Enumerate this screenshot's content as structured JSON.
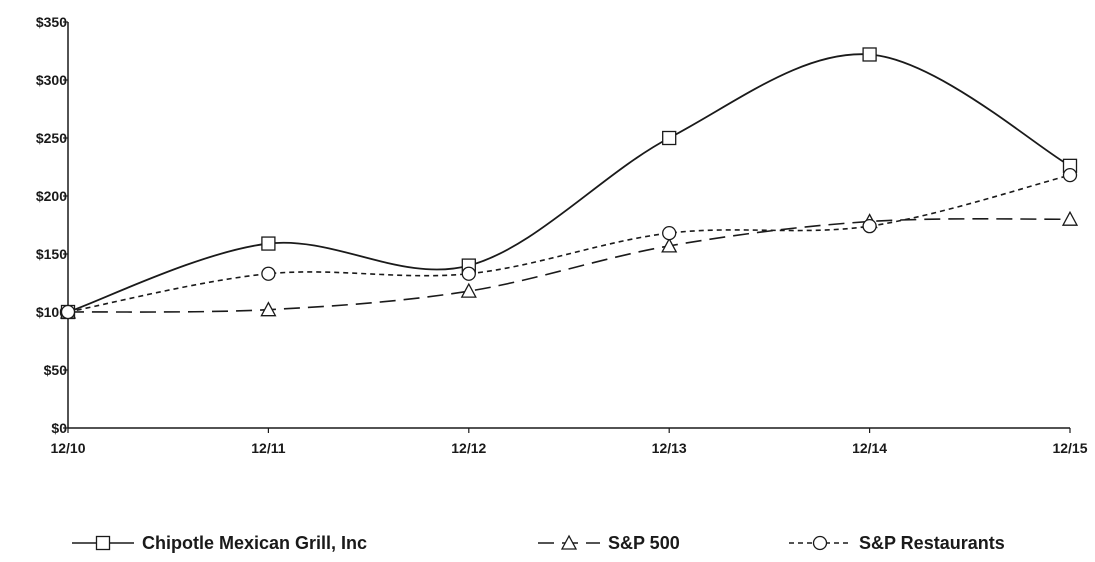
{
  "chart_data": {
    "type": "line",
    "title": "",
    "xlabel": "",
    "ylabel": "",
    "categories": [
      "12/10",
      "12/11",
      "12/12",
      "12/13",
      "12/14",
      "12/15"
    ],
    "ylim": [
      0,
      350
    ],
    "y_ticks": [
      0,
      50,
      100,
      150,
      200,
      250,
      300,
      350
    ],
    "y_tick_labels": [
      "$0",
      "$50",
      "$100",
      "$150",
      "$200",
      "$250",
      "$300",
      "$350"
    ],
    "grid": false,
    "legend_position": "bottom",
    "series": [
      {
        "name": "Chipotle Mexican Grill, Inc",
        "values": [
          100,
          159,
          140,
          250,
          322,
          226
        ],
        "line_style": "solid",
        "marker": "square",
        "color": "#1a1a1a"
      },
      {
        "name": "S&P 500",
        "values": [
          100,
          102,
          118,
          157,
          178,
          180
        ],
        "line_style": "long-dash",
        "marker": "triangle",
        "color": "#1a1a1a"
      },
      {
        "name": "S&P Restaurants",
        "values": [
          100,
          133,
          133,
          168,
          174,
          218
        ],
        "line_style": "short-dash",
        "marker": "circle",
        "color": "#1a1a1a"
      }
    ]
  }
}
